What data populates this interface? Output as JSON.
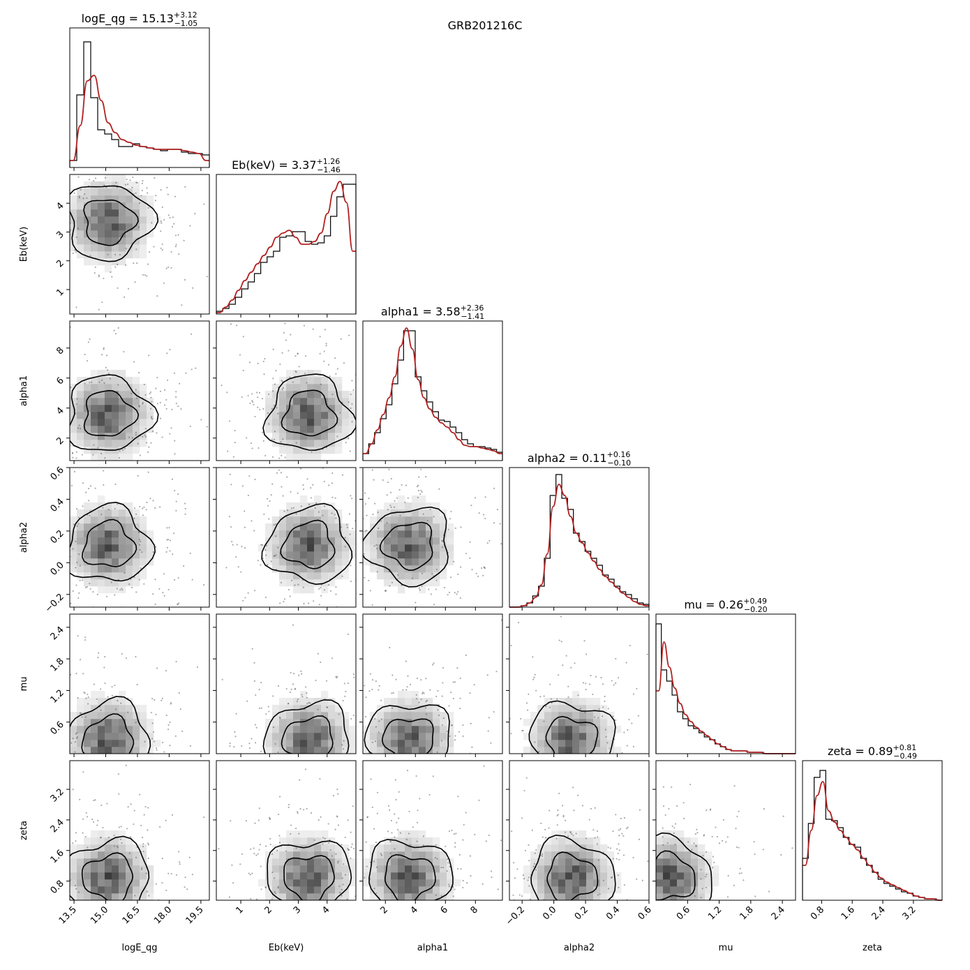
{
  "figure_title": "GRB201216C",
  "chart_data": {
    "type": "corner",
    "title": "GRB201216C",
    "parameters": [
      {
        "key": "logE_qg",
        "label": "logE_qg",
        "range": [
          13.3,
          19.9
        ],
        "ticks": [
          13.5,
          15.0,
          16.5,
          18.0,
          19.5
        ],
        "tick_labels": [
          "13.5",
          "15.0",
          "16.5",
          "18.0",
          "19.5"
        ],
        "median_label": "15.13",
        "plus": "+3.12",
        "minus": "−1.05",
        "title_prefix": "logE_qg = "
      },
      {
        "key": "Eb",
        "label": "Eb(keV)",
        "range": [
          0.15,
          5.0
        ],
        "ticks": [
          1,
          2,
          3,
          4
        ],
        "tick_labels": [
          "1",
          "2",
          "3",
          "4"
        ],
        "median_label": "3.37",
        "plus": "+1.26",
        "minus": "−1.46",
        "title_prefix": "Eb(keV) = "
      },
      {
        "key": "alpha1",
        "label": "alpha1",
        "range": [
          0.5,
          9.8
        ],
        "ticks": [
          2,
          4,
          6,
          8
        ],
        "tick_labels": [
          "2",
          "4",
          "6",
          "8"
        ],
        "median_label": "3.58",
        "plus": "+2.36",
        "minus": "−1.41",
        "title_prefix": "alpha1 = "
      },
      {
        "key": "alpha2",
        "label": "alpha2",
        "range": [
          -0.28,
          0.6
        ],
        "ticks": [
          -0.2,
          0.0,
          0.2,
          0.4,
          0.6
        ],
        "tick_labels": [
          "−0.2",
          "0.0",
          "0.2",
          "0.4",
          "0.6"
        ],
        "median_label": "0.11",
        "plus": "+0.16",
        "minus": "−0.10",
        "title_prefix": "alpha2 = "
      },
      {
        "key": "mu",
        "label": "mu",
        "range": [
          0.0,
          2.65
        ],
        "ticks": [
          0.6,
          1.2,
          1.8,
          2.4
        ],
        "tick_labels": [
          "0.6",
          "1.2",
          "1.8",
          "2.4"
        ],
        "median_label": "0.26",
        "plus": "+0.49",
        "minus": "−0.20",
        "title_prefix": "mu = "
      },
      {
        "key": "zeta",
        "label": "zeta",
        "range": [
          0.3,
          3.95
        ],
        "ticks": [
          0.8,
          1.6,
          2.4,
          3.2
        ],
        "tick_labels": [
          "0.8",
          "1.6",
          "2.4",
          "3.2"
        ],
        "median_label": "0.89",
        "plus": "+0.81",
        "minus": "−0.49",
        "title_prefix": "zeta = "
      }
    ],
    "marginals": [
      {
        "param": "logE_qg",
        "hist": [
          0.05,
          0.52,
          0.9,
          0.5,
          0.27,
          0.24,
          0.2,
          0.15,
          0.15,
          0.17,
          0.15,
          0.14,
          0.13,
          0.12,
          0.13,
          0.13,
          0.11,
          0.1,
          0.1,
          0.09
        ],
        "kde": [
          0.05,
          0.3,
          0.62,
          0.66,
          0.48,
          0.32,
          0.25,
          0.2,
          0.18,
          0.16,
          0.15,
          0.14,
          0.13,
          0.13,
          0.13,
          0.13,
          0.12,
          0.11,
          0.1,
          0.05
        ]
      },
      {
        "param": "Eb",
        "hist": [
          0.02,
          0.04,
          0.07,
          0.12,
          0.18,
          0.23,
          0.29,
          0.37,
          0.41,
          0.45,
          0.55,
          0.56,
          0.59,
          0.59,
          0.52,
          0.5,
          0.51,
          0.56,
          0.7,
          0.84,
          0.93,
          0.93
        ],
        "kde": [
          0.01,
          0.05,
          0.1,
          0.17,
          0.24,
          0.3,
          0.36,
          0.42,
          0.48,
          0.55,
          0.58,
          0.6,
          0.55,
          0.5,
          0.5,
          0.52,
          0.58,
          0.72,
          0.88,
          0.95,
          0.8,
          0.45
        ]
      },
      {
        "param": "alpha1",
        "hist": [
          0.05,
          0.12,
          0.2,
          0.3,
          0.4,
          0.55,
          0.72,
          0.93,
          0.93,
          0.6,
          0.5,
          0.42,
          0.35,
          0.29,
          0.28,
          0.24,
          0.2,
          0.15,
          0.12,
          0.1,
          0.1,
          0.09,
          0.08,
          0.06
        ],
        "kde": [
          0.05,
          0.12,
          0.22,
          0.33,
          0.45,
          0.6,
          0.82,
          0.95,
          0.8,
          0.58,
          0.45,
          0.37,
          0.31,
          0.27,
          0.24,
          0.2,
          0.15,
          0.11,
          0.1,
          0.1,
          0.09,
          0.08,
          0.07,
          0.05
        ]
      },
      {
        "param": "alpha2",
        "hist": [
          0.0,
          0.0,
          0.01,
          0.03,
          0.08,
          0.15,
          0.35,
          0.8,
          0.95,
          0.78,
          0.7,
          0.53,
          0.47,
          0.4,
          0.35,
          0.3,
          0.23,
          0.2,
          0.15,
          0.11,
          0.09,
          0.06,
          0.03,
          0.02
        ],
        "kde": [
          0.0,
          0.0,
          0.01,
          0.03,
          0.07,
          0.16,
          0.38,
          0.72,
          0.88,
          0.8,
          0.65,
          0.53,
          0.46,
          0.39,
          0.33,
          0.27,
          0.22,
          0.18,
          0.14,
          0.1,
          0.07,
          0.04,
          0.02,
          0.01
        ]
      },
      {
        "param": "mu",
        "hist": [
          0.93,
          0.6,
          0.52,
          0.42,
          0.3,
          0.25,
          0.2,
          0.18,
          0.15,
          0.12,
          0.1,
          0.07,
          0.05,
          0.03,
          0.02,
          0.02,
          0.02,
          0.01,
          0.01,
          0.01,
          0.0,
          0.0,
          0.0,
          0.0,
          0.0,
          0.0
        ],
        "kde": [
          0.45,
          0.8,
          0.62,
          0.47,
          0.36,
          0.28,
          0.23,
          0.19,
          0.16,
          0.13,
          0.1,
          0.07,
          0.05,
          0.03,
          0.02,
          0.02,
          0.02,
          0.01,
          0.01,
          0.01,
          0.0,
          0.0,
          0.0,
          0.0,
          0.0,
          0.0
        ]
      },
      {
        "param": "zeta",
        "hist": [
          0.3,
          0.55,
          0.88,
          0.93,
          0.58,
          0.57,
          0.52,
          0.45,
          0.4,
          0.38,
          0.3,
          0.25,
          0.2,
          0.15,
          0.12,
          0.1,
          0.08,
          0.06,
          0.05,
          0.03,
          0.02,
          0.01,
          0.01,
          0.0
        ],
        "kde": [
          0.25,
          0.5,
          0.75,
          0.85,
          0.64,
          0.56,
          0.5,
          0.45,
          0.4,
          0.36,
          0.3,
          0.25,
          0.2,
          0.16,
          0.13,
          0.11,
          0.09,
          0.07,
          0.05,
          0.03,
          0.02,
          0.01,
          0.01,
          0.0
        ]
      }
    ],
    "histogram_color": "#000000",
    "kde_color": "#b22222",
    "scatter_color": "#444444",
    "density_color": "#000000",
    "contour_color": "#000000"
  }
}
